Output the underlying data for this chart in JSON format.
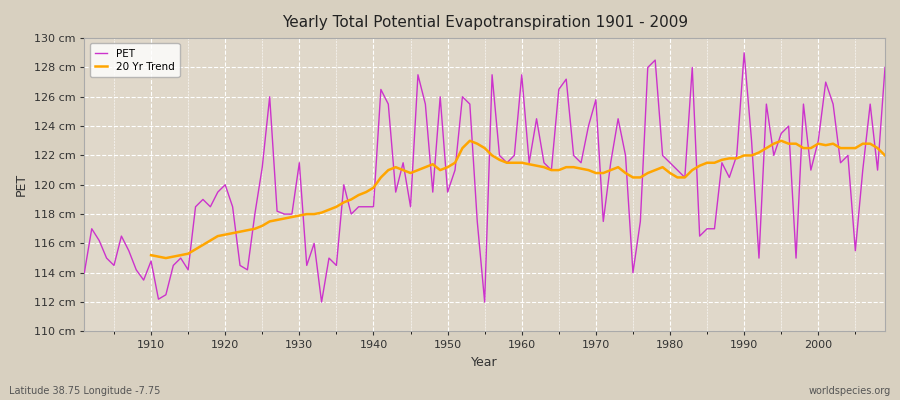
{
  "title": "Yearly Total Potential Evapotranspiration 1901 - 2009",
  "xlabel": "Year",
  "ylabel": "PET",
  "subtitle": "Latitude 38.75 Longitude -7.75",
  "watermark": "worldspecies.org",
  "ylim": [
    110,
    130
  ],
  "ytick_labels": [
    "110 cm",
    "112 cm",
    "114 cm",
    "116 cm",
    "118 cm",
    "120 cm",
    "122 cm",
    "124 cm",
    "126 cm",
    "128 cm",
    "130 cm"
  ],
  "ytick_values": [
    110,
    112,
    114,
    116,
    118,
    120,
    122,
    124,
    126,
    128,
    130
  ],
  "pet_color": "#CC33CC",
  "trend_color": "#FFA500",
  "fig_bg_color": "#E0D8C8",
  "plot_bg_color": "#E8E0D0",
  "grid_color": "#FFFFFF",
  "years": [
    1901,
    1902,
    1903,
    1904,
    1905,
    1906,
    1907,
    1908,
    1909,
    1910,
    1911,
    1912,
    1913,
    1914,
    1915,
    1916,
    1917,
    1918,
    1919,
    1920,
    1921,
    1922,
    1923,
    1924,
    1925,
    1926,
    1927,
    1928,
    1929,
    1930,
    1931,
    1932,
    1933,
    1934,
    1935,
    1936,
    1937,
    1938,
    1939,
    1940,
    1941,
    1942,
    1943,
    1944,
    1945,
    1946,
    1947,
    1948,
    1949,
    1950,
    1951,
    1952,
    1953,
    1954,
    1955,
    1956,
    1957,
    1958,
    1959,
    1960,
    1961,
    1962,
    1963,
    1964,
    1965,
    1966,
    1967,
    1968,
    1969,
    1970,
    1971,
    1972,
    1973,
    1974,
    1975,
    1976,
    1977,
    1978,
    1979,
    1980,
    1981,
    1982,
    1983,
    1984,
    1985,
    1986,
    1987,
    1988,
    1989,
    1990,
    1991,
    1992,
    1993,
    1994,
    1995,
    1996,
    1997,
    1998,
    1999,
    2000,
    2001,
    2002,
    2003,
    2004,
    2005,
    2006,
    2007,
    2008,
    2009
  ],
  "pet_values": [
    114.0,
    117.0,
    116.2,
    115.0,
    114.5,
    116.5,
    115.5,
    114.2,
    113.5,
    114.8,
    112.2,
    112.5,
    114.5,
    115.0,
    114.2,
    118.5,
    119.0,
    118.5,
    119.5,
    120.0,
    118.5,
    114.5,
    114.2,
    118.0,
    121.2,
    126.0,
    118.2,
    118.0,
    118.0,
    121.5,
    114.5,
    116.0,
    112.0,
    115.0,
    114.5,
    120.0,
    118.0,
    118.5,
    118.5,
    118.5,
    126.5,
    125.5,
    119.5,
    121.5,
    118.5,
    127.5,
    125.5,
    119.5,
    126.0,
    119.5,
    121.0,
    126.0,
    125.5,
    117.5,
    112.0,
    127.5,
    122.0,
    121.5,
    122.0,
    127.5,
    121.5,
    124.5,
    121.5,
    121.0,
    126.5,
    127.2,
    122.0,
    121.5,
    124.0,
    125.8,
    117.5,
    121.5,
    124.5,
    122.0,
    114.0,
    117.5,
    128.0,
    128.5,
    122.0,
    121.5,
    121.0,
    120.5,
    128.0,
    116.5,
    117.0,
    117.0,
    121.5,
    120.5,
    122.0,
    129.0,
    123.0,
    115.0,
    125.5,
    122.0,
    123.5,
    124.0,
    115.0,
    125.5,
    121.0,
    123.0,
    127.0,
    125.5,
    121.5,
    122.0,
    115.5,
    121.0,
    125.5,
    121.0,
    128.0
  ],
  "trend_years": [
    1910,
    1911,
    1912,
    1913,
    1914,
    1915,
    1916,
    1917,
    1918,
    1919,
    1920,
    1921,
    1922,
    1923,
    1924,
    1925,
    1926,
    1927,
    1928,
    1929,
    1930,
    1931,
    1932,
    1933,
    1934,
    1935,
    1936,
    1937,
    1938,
    1939,
    1940,
    1941,
    1942,
    1943,
    1944,
    1945,
    1946,
    1947,
    1948,
    1949,
    1950,
    1951,
    1952,
    1953,
    1954,
    1955,
    1956,
    1957,
    1958,
    1959,
    1960,
    1961,
    1962,
    1963,
    1964,
    1965,
    1966,
    1967,
    1968,
    1969,
    1970,
    1971,
    1972,
    1973,
    1974,
    1975,
    1976,
    1977,
    1978,
    1979,
    1980,
    1981,
    1982,
    1983,
    1984,
    1985,
    1986,
    1987,
    1988,
    1989,
    1990,
    1991,
    1992,
    1993,
    1994,
    1995,
    1996,
    1997,
    1998,
    1999,
    2000,
    2001,
    2002,
    2003,
    2004,
    2005,
    2006,
    2007,
    2008,
    2009
  ],
  "trend_values": [
    115.2,
    115.1,
    115.0,
    115.1,
    115.2,
    115.3,
    115.6,
    115.9,
    116.2,
    116.5,
    116.6,
    116.7,
    116.8,
    116.9,
    117.0,
    117.2,
    117.5,
    117.6,
    117.7,
    117.8,
    117.9,
    118.0,
    118.0,
    118.1,
    118.3,
    118.5,
    118.8,
    119.0,
    119.3,
    119.5,
    119.8,
    120.5,
    121.0,
    121.2,
    121.0,
    120.8,
    121.0,
    121.2,
    121.4,
    121.0,
    121.2,
    121.5,
    122.5,
    123.0,
    122.8,
    122.5,
    122.0,
    121.7,
    121.5,
    121.5,
    121.5,
    121.4,
    121.3,
    121.2,
    121.0,
    121.0,
    121.2,
    121.2,
    121.1,
    121.0,
    120.8,
    120.8,
    121.0,
    121.2,
    120.8,
    120.5,
    120.5,
    120.8,
    121.0,
    121.2,
    120.8,
    120.5,
    120.5,
    121.0,
    121.3,
    121.5,
    121.5,
    121.7,
    121.8,
    121.8,
    122.0,
    122.0,
    122.2,
    122.5,
    122.8,
    123.0,
    122.8,
    122.8,
    122.5,
    122.5,
    122.8,
    122.7,
    122.8,
    122.5,
    122.5,
    122.5,
    122.8,
    122.8,
    122.5,
    122.0
  ]
}
